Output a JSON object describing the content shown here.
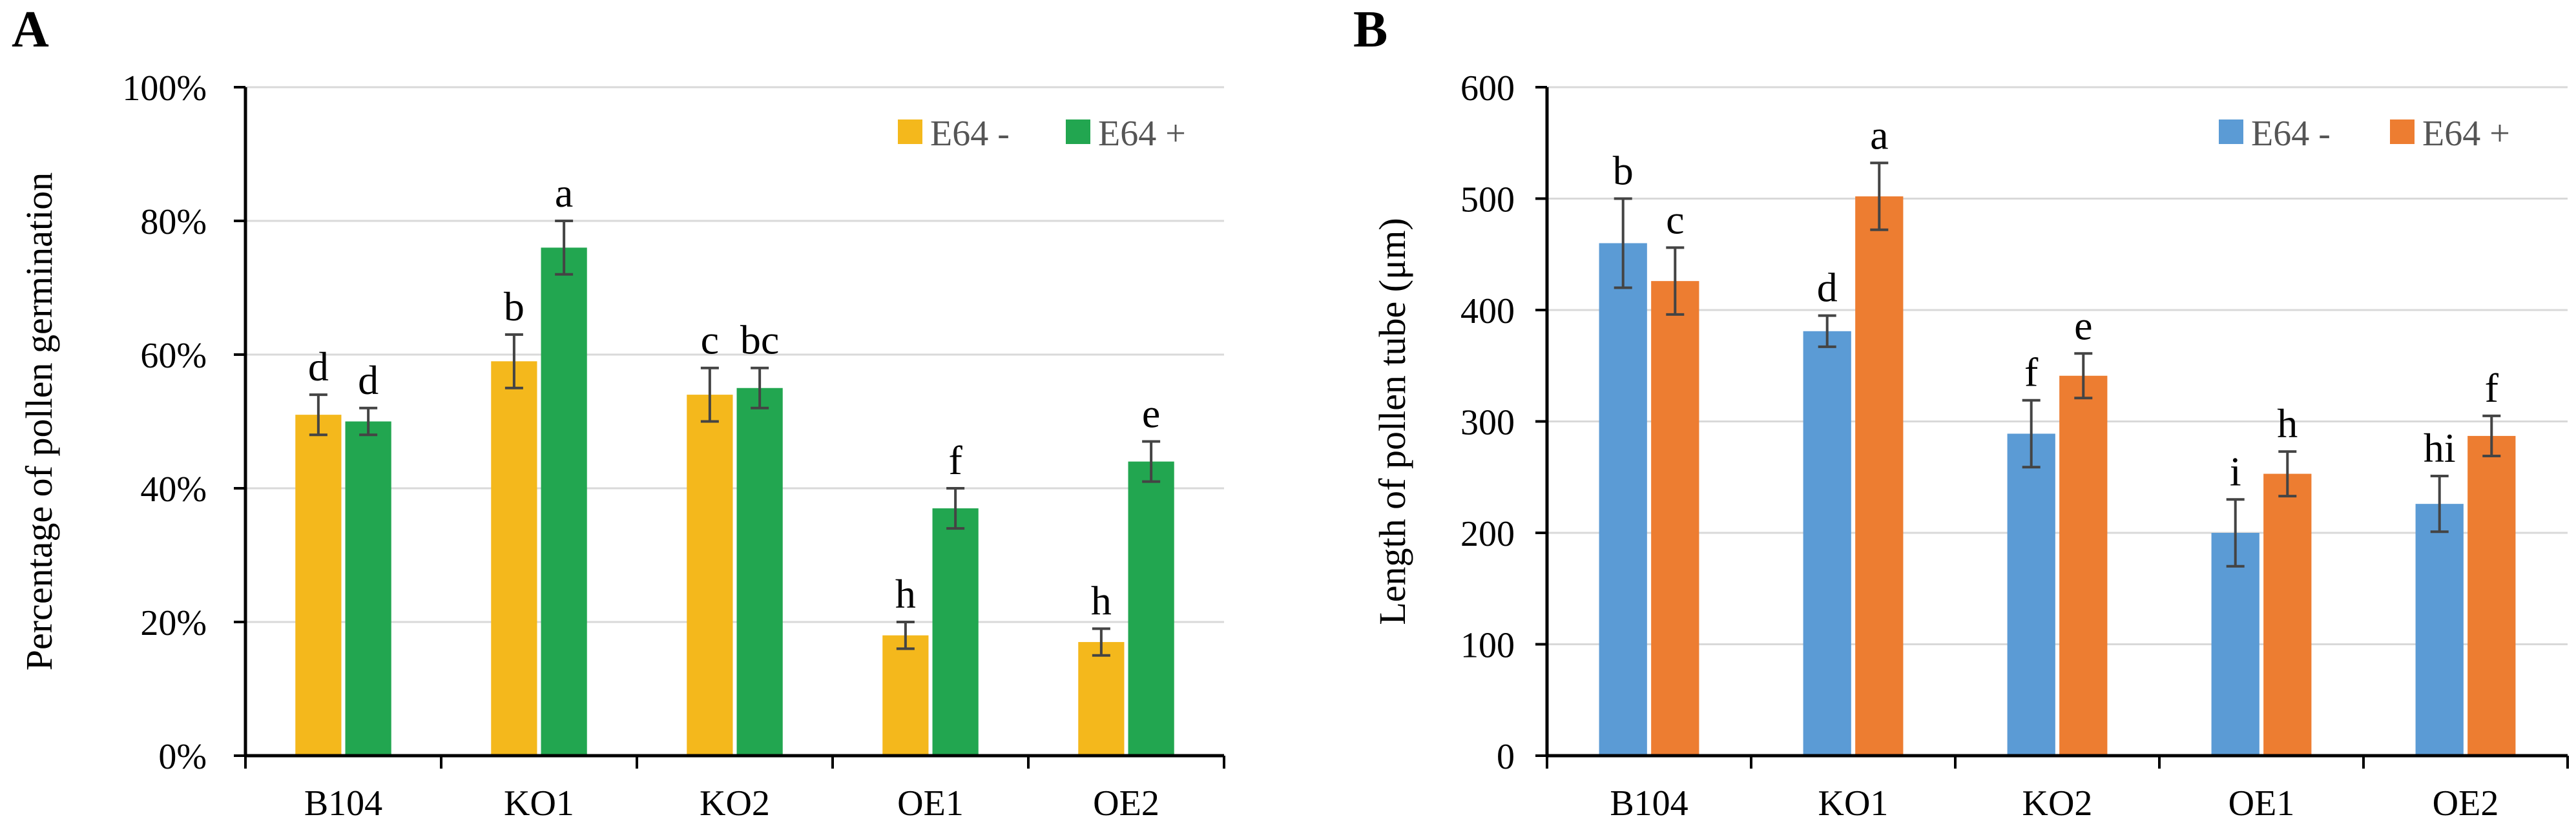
{
  "figure": {
    "panels": [
      "A",
      "B"
    ]
  },
  "chart_data": [
    {
      "panel": "A",
      "type": "bar",
      "title": "",
      "xlabel": "",
      "ylabel": "Percentage of pollen germination",
      "categories": [
        "B104",
        "KO1",
        "KO2",
        "OE1",
        "OE2"
      ],
      "ylim": [
        0,
        100
      ],
      "yticks": [
        0,
        20,
        40,
        60,
        80,
        100
      ],
      "ytick_labels": [
        "0%",
        "20%",
        "40%",
        "60%",
        "80%",
        "100%"
      ],
      "legend_position": "top-right",
      "grid": true,
      "series": [
        {
          "name": "E64 -",
          "color": "#F4B81C",
          "values": [
            51,
            59,
            54,
            18,
            17
          ],
          "errors": [
            3,
            4,
            4,
            2,
            2
          ],
          "labels": [
            "d",
            "b",
            "c",
            "h",
            "h"
          ]
        },
        {
          "name": "E64 +",
          "color": "#22A650",
          "values": [
            50,
            76,
            55,
            37,
            44
          ],
          "errors": [
            2,
            4,
            3,
            3,
            3
          ],
          "labels": [
            "d",
            "a",
            "bc",
            "f",
            "e"
          ]
        }
      ]
    },
    {
      "panel": "B",
      "type": "bar",
      "title": "",
      "xlabel": "",
      "ylabel": "Length of pollen tube (μm)",
      "categories": [
        "B104",
        "KO1",
        "KO2",
        "OE1",
        "OE2"
      ],
      "ylim": [
        0,
        600
      ],
      "yticks": [
        0,
        100,
        200,
        300,
        400,
        500,
        600
      ],
      "ytick_labels": [
        "0",
        "100",
        "200",
        "300",
        "400",
        "500",
        "600"
      ],
      "legend_position": "top-right",
      "grid": true,
      "series": [
        {
          "name": "E64 -",
          "color": "#5B9BD5",
          "values": [
            460,
            381,
            289,
            200,
            226
          ],
          "errors": [
            40,
            14,
            30,
            30,
            25
          ],
          "labels": [
            "b",
            "d",
            "f",
            "i",
            "hi"
          ]
        },
        {
          "name": "E64 +",
          "color": "#ED7D31",
          "values": [
            426,
            502,
            341,
            253,
            287
          ],
          "errors": [
            30,
            30,
            20,
            20,
            18
          ],
          "labels": [
            "c",
            "a",
            "e",
            "h",
            "f"
          ]
        }
      ]
    }
  ]
}
